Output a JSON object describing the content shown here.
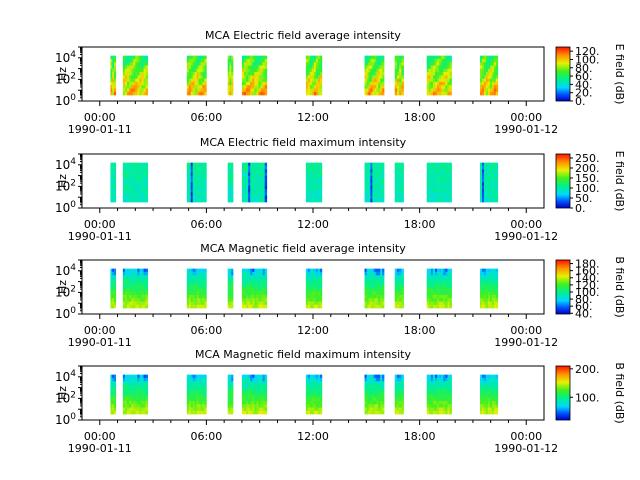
{
  "figure": {
    "background": "#ffffff"
  },
  "chart_data": [
    {
      "type": "heatmap",
      "title": "MCA  Electric field average intensity",
      "ylabel": "Hz",
      "yscale": "log",
      "ylim": [
        1,
        100000
      ],
      "yticks": [
        {
          "exp": "0"
        },
        {
          "exp": "2"
        },
        {
          "exp": "4"
        }
      ],
      "xlim": [
        "1990-01-10 23:00",
        "1990-01-12 01:00"
      ],
      "xticks": [
        {
          "time": "00:00",
          "date": "1990-01-11"
        },
        {
          "time": "06:00",
          "date": ""
        },
        {
          "time": "12:00",
          "date": ""
        },
        {
          "time": "18:00",
          "date": ""
        },
        {
          "time": "00:00",
          "date": "1990-01-12"
        }
      ],
      "colorbar": {
        "label": "E field (dB)",
        "range": [
          0,
          130
        ],
        "ticks": [
          "0.",
          "20.",
          "40.",
          "60.",
          "80.",
          "100.",
          "120."
        ]
      },
      "coverage_hours": [
        [
          0.6,
          0.9
        ],
        [
          1.3,
          2.7
        ],
        [
          4.9,
          6.0
        ],
        [
          7.2,
          7.5
        ],
        [
          8.0,
          9.4
        ],
        [
          11.6,
          12.5
        ],
        [
          14.9,
          16.0
        ],
        [
          16.6,
          17.1
        ],
        [
          18.4,
          19.8
        ],
        [
          21.4,
          22.4
        ]
      ],
      "palette": "warm"
    },
    {
      "type": "heatmap",
      "title": "MCA  Electric field maximum intensity",
      "ylabel": "Hz",
      "yscale": "log",
      "ylim": [
        1,
        100000
      ],
      "yticks": [
        {
          "exp": "0"
        },
        {
          "exp": "2"
        },
        {
          "exp": "4"
        }
      ],
      "xlim": [
        "1990-01-10 23:00",
        "1990-01-12 01:00"
      ],
      "xticks": [
        {
          "time": "00:00",
          "date": "1990-01-11"
        },
        {
          "time": "06:00",
          "date": ""
        },
        {
          "time": "12:00",
          "date": ""
        },
        {
          "time": "18:00",
          "date": ""
        },
        {
          "time": "00:00",
          "date": "1990-01-12"
        }
      ],
      "colorbar": {
        "label": "E field (dB)",
        "range": [
          0,
          270
        ],
        "ticks": [
          "0.",
          "50.",
          "100.",
          "150.",
          "200.",
          "250."
        ]
      },
      "coverage_hours": [
        [
          0.6,
          0.9
        ],
        [
          1.3,
          2.7
        ],
        [
          4.9,
          6.0
        ],
        [
          7.2,
          7.5
        ],
        [
          8.0,
          9.4
        ],
        [
          11.6,
          12.5
        ],
        [
          14.9,
          16.0
        ],
        [
          16.6,
          17.1
        ],
        [
          18.4,
          19.8
        ],
        [
          21.4,
          22.4
        ]
      ],
      "palette": "cool"
    },
    {
      "type": "heatmap",
      "title": "MCA  Magnetic field average intensity",
      "ylabel": "Hz",
      "yscale": "log",
      "ylim": [
        1,
        100000
      ],
      "yticks": [
        {
          "exp": "0"
        },
        {
          "exp": "2"
        },
        {
          "exp": "4"
        }
      ],
      "xlim": [
        "1990-01-10 23:00",
        "1990-01-12 01:00"
      ],
      "xticks": [
        {
          "time": "00:00",
          "date": "1990-01-11"
        },
        {
          "time": "06:00",
          "date": ""
        },
        {
          "time": "12:00",
          "date": ""
        },
        {
          "time": "18:00",
          "date": ""
        },
        {
          "time": "00:00",
          "date": "1990-01-12"
        }
      ],
      "colorbar": {
        "label": "B field (dB)",
        "range": [
          38,
          190
        ],
        "ticks": [
          "40.",
          "60.",
          "80.",
          "100.",
          "120.",
          "140.",
          "160.",
          "180."
        ]
      },
      "coverage_hours": [
        [
          0.6,
          0.9
        ],
        [
          1.3,
          2.7
        ],
        [
          4.9,
          6.0
        ],
        [
          7.2,
          7.5
        ],
        [
          8.0,
          9.4
        ],
        [
          11.6,
          12.5
        ],
        [
          14.9,
          16.0
        ],
        [
          16.6,
          17.1
        ],
        [
          18.4,
          19.8
        ],
        [
          21.4,
          22.4
        ]
      ],
      "palette": "mag"
    },
    {
      "type": "heatmap",
      "title": "MCA  Magnetic field maximum intensity",
      "ylabel": "Hz",
      "yscale": "log",
      "ylim": [
        1,
        100000
      ],
      "yticks": [
        {
          "exp": "0"
        },
        {
          "exp": "2"
        },
        {
          "exp": "4"
        }
      ],
      "xlim": [
        "1990-01-10 23:00",
        "1990-01-12 01:00"
      ],
      "xticks": [
        {
          "time": "00:00",
          "date": "1990-01-11"
        },
        {
          "time": "06:00",
          "date": ""
        },
        {
          "time": "12:00",
          "date": ""
        },
        {
          "time": "18:00",
          "date": ""
        },
        {
          "time": "00:00",
          "date": "1990-01-12"
        }
      ],
      "colorbar": {
        "label": "B field (dB)",
        "range": [
          20,
          210
        ],
        "ticks": [
          "100.",
          "200."
        ]
      },
      "coverage_hours": [
        [
          0.6,
          0.9
        ],
        [
          1.3,
          2.7
        ],
        [
          4.9,
          6.0
        ],
        [
          7.2,
          7.5
        ],
        [
          8.0,
          9.4
        ],
        [
          11.6,
          12.5
        ],
        [
          14.9,
          16.0
        ],
        [
          16.6,
          17.1
        ],
        [
          18.4,
          19.8
        ],
        [
          21.4,
          22.4
        ]
      ],
      "palette": "mag"
    }
  ]
}
